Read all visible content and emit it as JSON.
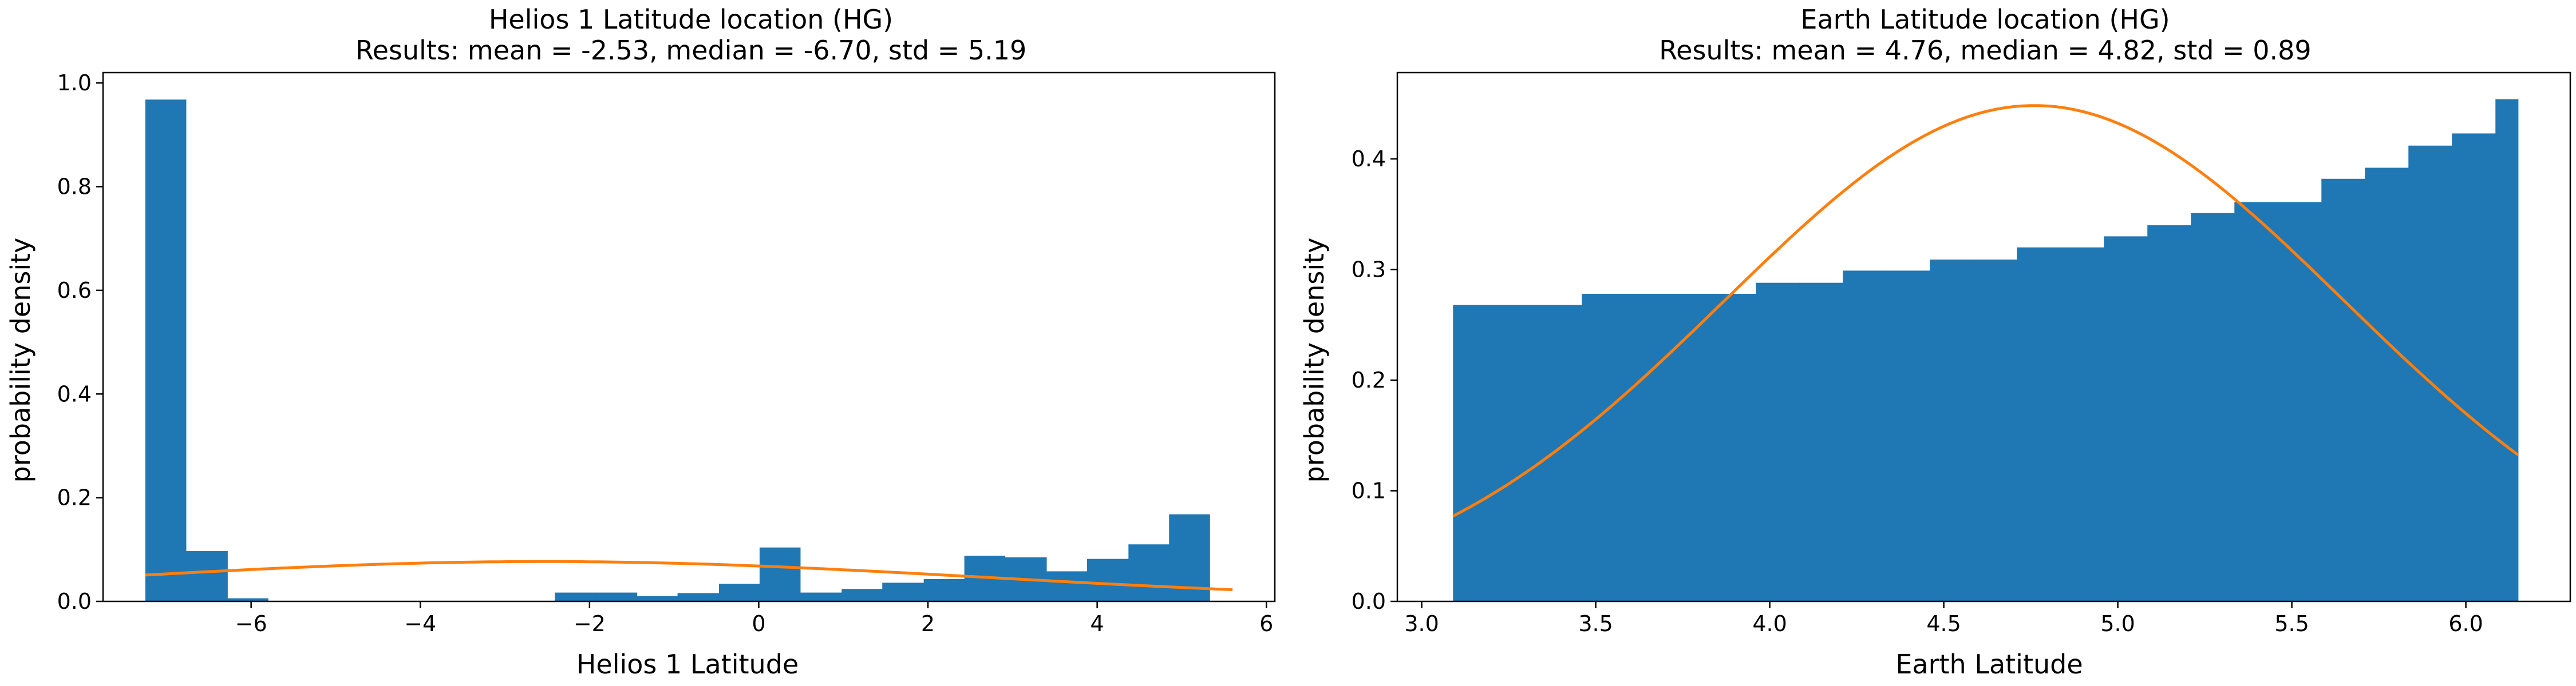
{
  "figure": {
    "panels": [
      {
        "title_line1": "Helios 1 Latitude location (HG)",
        "title_line2": "Results: mean = -2.53, median = -6.70, std = 5.19",
        "xlabel": "Helios 1 Latitude",
        "ylabel": "probability density"
      },
      {
        "title_line1": "Earth Latitude location (HG)",
        "title_line2": "Results: mean = 4.76, median = 4.82, std = 0.89",
        "xlabel": "Earth Latitude",
        "ylabel": "probability density"
      }
    ]
  },
  "colors": {
    "bars": "#1f77b4",
    "curve": "#ff7f0e"
  },
  "chart_data": [
    {
      "type": "bar",
      "title": "Helios 1 Latitude location (HG)\nResults: mean = -2.53, median = -6.70, std = 5.19",
      "xlabel": "Helios 1 Latitude",
      "ylabel": "probability density",
      "xlim": [
        -7.75,
        6.1
      ],
      "ylim": [
        0,
        1.02
      ],
      "xticks": [
        -6,
        -4,
        -2,
        0,
        2,
        4,
        6
      ],
      "xtick_labels": [
        "−6",
        "−4",
        "−2",
        "0",
        "2",
        "4",
        "6"
      ],
      "yticks": [
        0.0,
        0.2,
        0.4,
        0.6,
        0.8,
        1.0
      ],
      "ytick_labels": [
        "0.0",
        "0.2",
        "0.4",
        "0.6",
        "0.8",
        "1.0"
      ],
      "grid": false,
      "histogram": {
        "bin_edges": [
          -7.25,
          -6.77,
          -6.28,
          -5.8,
          -5.31,
          -4.83,
          -4.35,
          -3.86,
          -3.38,
          -2.89,
          -2.41,
          -1.93,
          -1.44,
          -0.96,
          -0.47,
          0.01,
          0.49,
          0.98,
          1.46,
          1.95,
          2.43,
          2.91,
          3.4,
          3.88,
          4.37,
          4.85,
          5.33,
          5.82
        ],
        "values": [
          0.968,
          0.097,
          0.006,
          0.0,
          0.0,
          0.0,
          0.0,
          0.0,
          0.0,
          0.0,
          0.017,
          0.017,
          0.01,
          0.016,
          0.034,
          0.104,
          0.017,
          0.024,
          0.036,
          0.043,
          0.088,
          0.085,
          0.058,
          0.082,
          0.11,
          0.168,
          0.0
        ]
      },
      "curve": {
        "name": "normal fit",
        "mean": -2.53,
        "std": 5.19,
        "x_range": [
          -7.25,
          5.6
        ]
      }
    },
    {
      "type": "bar",
      "title": "Earth Latitude location (HG)\nResults: mean = 4.76, median = 4.82, std = 0.89",
      "xlabel": "Earth Latitude",
      "ylabel": "probability density",
      "xlim": [
        2.93,
        6.3
      ],
      "ylim": [
        0,
        0.478
      ],
      "xticks": [
        3.0,
        3.5,
        4.0,
        4.5,
        5.0,
        5.5,
        6.0
      ],
      "xtick_labels": [
        "3.0",
        "3.5",
        "4.0",
        "4.5",
        "5.0",
        "5.5",
        "6.0"
      ],
      "yticks": [
        0.0,
        0.1,
        0.2,
        0.3,
        0.4
      ],
      "ytick_labels": [
        "0.0",
        "0.1",
        "0.2",
        "0.3",
        "0.4"
      ],
      "grid": false,
      "histogram": {
        "bin_edges": [
          3.09,
          3.34,
          3.46,
          3.585,
          3.71,
          3.835,
          3.96,
          4.085,
          4.21,
          4.335,
          4.46,
          4.585,
          4.71,
          4.835,
          4.96,
          5.085,
          5.21,
          5.335,
          5.46,
          5.585,
          5.71,
          5.835,
          5.96,
          6.085,
          6.15
        ],
        "values": [
          0.268,
          0.268,
          0.278,
          0.278,
          0.278,
          0.278,
          0.288,
          0.288,
          0.299,
          0.299,
          0.309,
          0.309,
          0.32,
          0.32,
          0.33,
          0.34,
          0.351,
          0.361,
          0.361,
          0.382,
          0.392,
          0.412,
          0.423,
          0.454
        ]
      },
      "curve": {
        "name": "normal fit",
        "mean": 4.76,
        "std": 0.89,
        "x_range": [
          3.09,
          6.15
        ]
      }
    }
  ]
}
